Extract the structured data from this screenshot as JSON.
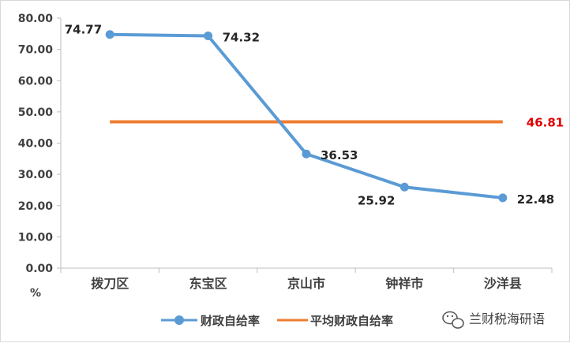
{
  "chart_data": {
    "type": "line",
    "categories": [
      "拨刀区",
      "东宝区",
      "京山市",
      "钟祥市",
      "沙洋县"
    ],
    "series": [
      {
        "name": "财政自给率",
        "values": [
          74.77,
          74.32,
          36.53,
          25.92,
          22.48
        ],
        "color": "#5b9bd5"
      },
      {
        "name": "平均财政自给率",
        "values": [
          46.81,
          46.81,
          46.81,
          46.81,
          46.81
        ],
        "color": "#ed7d31"
      }
    ],
    "data_labels": [
      "74.77",
      "74.32",
      "36.53",
      "25.92",
      "22.48"
    ],
    "average_label": "46.81",
    "average_label_color": "#e00000",
    "yticks": [
      "80.00",
      "70.00",
      "60.00",
      "50.00",
      "40.00",
      "30.00",
      "20.00",
      "10.00",
      "0.00"
    ],
    "ylim": [
      0,
      80
    ],
    "ylabel": "%",
    "legend_position": "bottom",
    "grid": false
  },
  "watermark": {
    "text": "兰财税海研语",
    "icon": "wechat-icon"
  }
}
